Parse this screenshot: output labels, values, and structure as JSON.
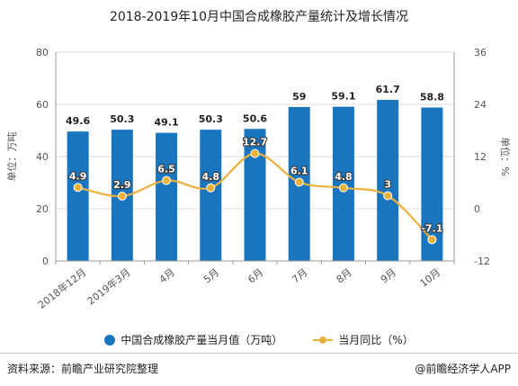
{
  "title": "2018-2019年10月中国合成橡胶产量统计及增长情况",
  "colors": {
    "bar": "#1a75bf",
    "line": "#eab23c",
    "grid": "#dddddd"
  },
  "chart_data": {
    "type": "bar",
    "categories": [
      "2018年12月",
      "2019年3月",
      "4月",
      "5月",
      "6月",
      "7月",
      "8月",
      "9月",
      "10月"
    ],
    "series": [
      {
        "name": "中国合成橡胶产量当月值（万吨）",
        "type": "bar",
        "axis": "left",
        "values": [
          49.6,
          50.3,
          49.1,
          50.3,
          50.6,
          59,
          59.1,
          61.7,
          58.8
        ],
        "labels": [
          "49.6",
          "50.3",
          "49.1",
          "50.3",
          "50.6",
          "59",
          "59.1",
          "61.7",
          "58.8"
        ]
      },
      {
        "name": "当月同比（%）",
        "type": "line",
        "axis": "right",
        "values": [
          4.9,
          2.9,
          6.5,
          4.8,
          12.7,
          6.1,
          4.8,
          3,
          -7.1
        ],
        "labels": [
          "4.9",
          "2.9",
          "6.5",
          "4.8",
          "12.7",
          "6.1",
          "4.8",
          "3",
          "-7.1"
        ]
      }
    ],
    "left_axis": {
      "label": "单位：万吨",
      "ylim": [
        0,
        80
      ],
      "ticks": [
        "0",
        "20",
        "40",
        "60",
        "80"
      ]
    },
    "right_axis": {
      "label": "单位：%",
      "ylim": [
        -12,
        36
      ],
      "ticks": [
        "-12",
        "0",
        "12",
        "24",
        "36"
      ]
    },
    "grid": true,
    "legend_position": "bottom"
  },
  "legend": {
    "bar_label": "中国合成橡胶产量当月值（万吨）",
    "line_label": "当月同比（%）"
  },
  "footer": {
    "source": "资料来源：前瞻产业研究院整理",
    "brand": "@前瞻经济学人APP"
  }
}
